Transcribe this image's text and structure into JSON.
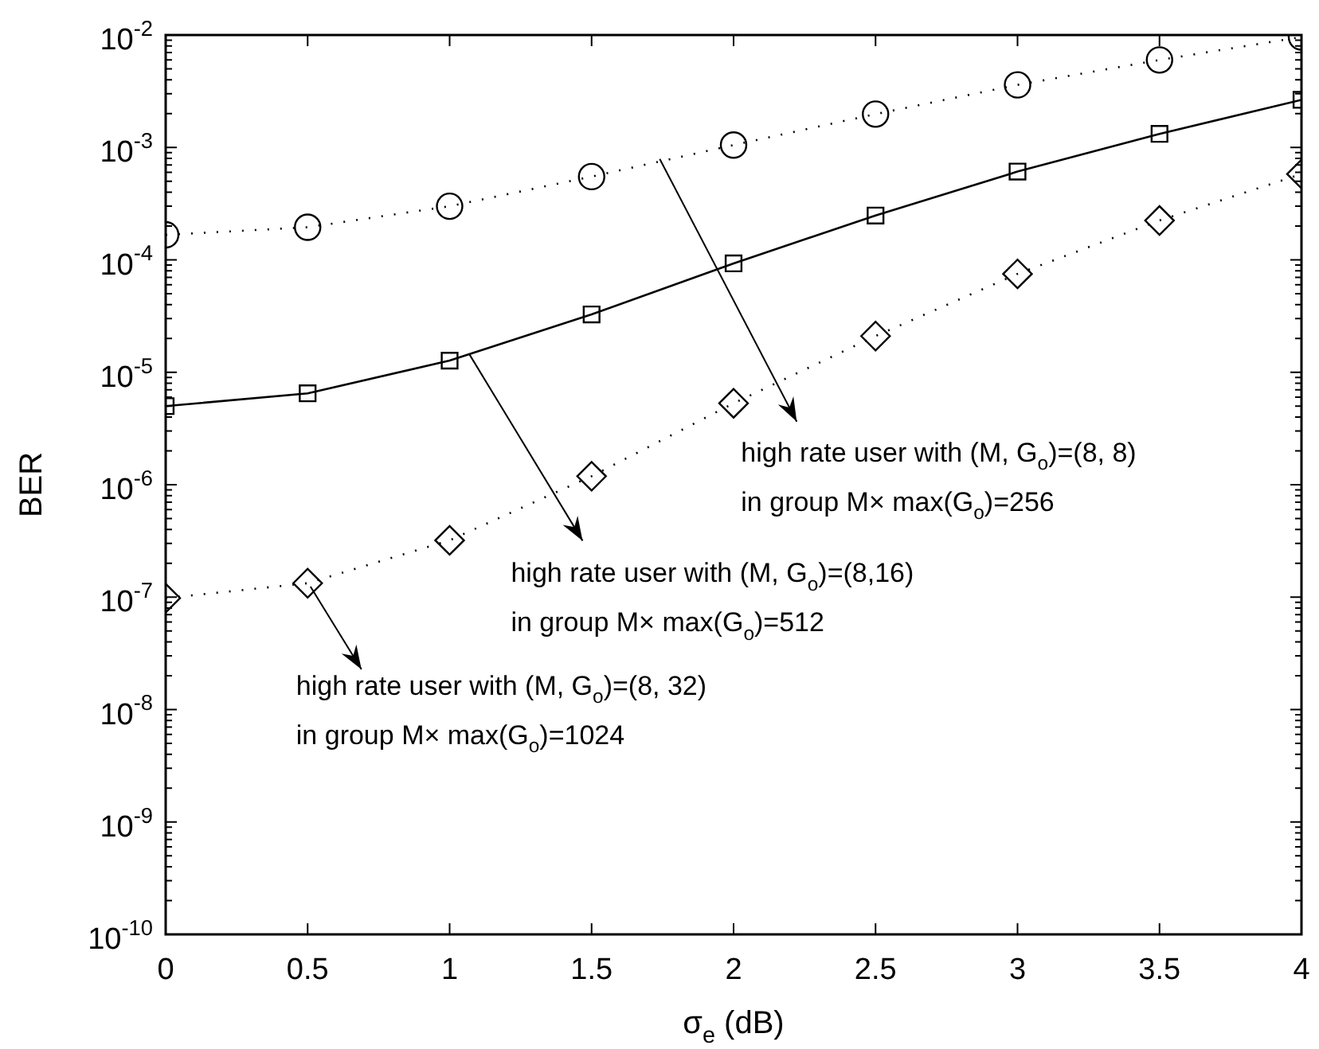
{
  "chart_data": {
    "type": "line",
    "xlabel": "σ$_{e}$ (dB)",
    "ylabel": "BER",
    "log": "y",
    "grid": false,
    "legend": false,
    "x": [
      0,
      0.5,
      1,
      1.5,
      2,
      2.5,
      3,
      3.5,
      4
    ],
    "xlim": [
      0,
      4
    ],
    "xticks": [
      0,
      0.5,
      1,
      1.5,
      2,
      2.5,
      3,
      3.5,
      4
    ],
    "ylim": [
      1e-10,
      0.01
    ],
    "yticks": [
      {
        "value": 1e-10,
        "label": "10$^{-10}$"
      },
      {
        "value": 1e-09,
        "label": "10$^{-9}$"
      },
      {
        "value": 1e-08,
        "label": "10$^{-8}$"
      },
      {
        "value": 1e-07,
        "label": "10$^{-7}$"
      },
      {
        "value": 1e-06,
        "label": "10$^{-6}$"
      },
      {
        "value": 1e-05,
        "label": "10$^{-5}$"
      },
      {
        "value": 0.0001,
        "label": "10$^{-4}$"
      },
      {
        "value": 0.001,
        "label": "10$^{-3}$"
      },
      {
        "value": 0.01,
        "label": "10$^{-2}$"
      }
    ],
    "series": [
      {
        "color": "#000000",
        "marker": "circle",
        "line_style": "dotted",
        "values": [
          0.000167,
          0.000195,
          0.0003,
          0.00055,
          0.00105,
          0.00198,
          0.0036,
          0.006,
          0.0096
        ]
      },
      {
        "color": "#000000",
        "marker": "square",
        "line_style": "solid",
        "values": [
          5e-06,
          6.5e-06,
          1.27e-05,
          3.27e-05,
          9.3e-05,
          0.000248,
          0.00061,
          0.00132,
          0.00265
        ]
      },
      {
        "color": "#000000",
        "marker": "diamond",
        "line_style": "dotted",
        "values": [
          9.8e-08,
          1.33e-07,
          3.2e-07,
          1.19e-06,
          5.3e-06,
          2.1e-05,
          7.5e-05,
          0.000224,
          0.00058
        ]
      }
    ],
    "annotations": [
      {
        "text": "high rate user with (M, G$_{o}$)=(8, 8)",
        "x": 1.74,
        "y": 0.00079
      },
      "in group M× max(G$_{o}$)=256",
      {
        "text": "high rate user with (M, G$_{o}$)=(8,16)",
        "x": 1.07,
        "y": 1.44e-05
      },
      "in group M× max(G$_{o}$)=512",
      {
        "text": "high rate user with (M, G$_{o}$)=(8, 32)",
        "x": 0.51,
        "y": 1.24e-07
      },
      "in group M× max(G$_{o}$)=1024"
    ]
  }
}
